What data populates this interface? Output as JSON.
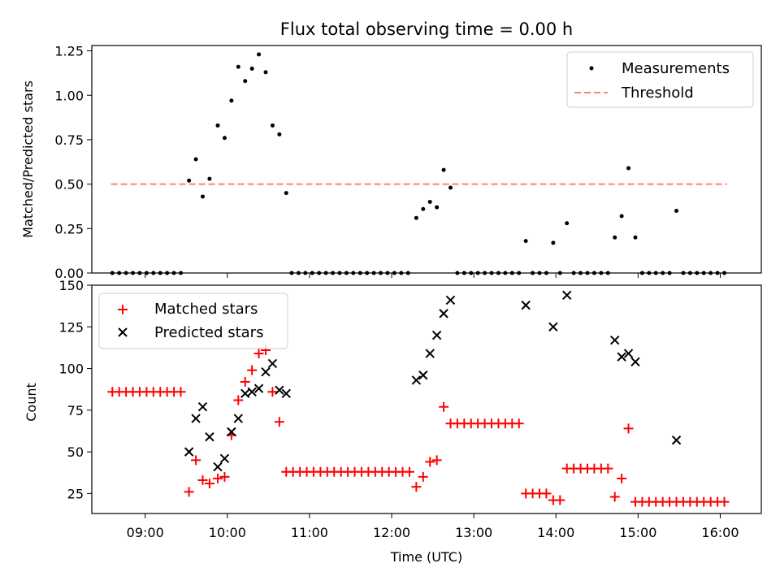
{
  "chart_data": [
    {
      "type": "scatter",
      "title": "Flux total observing time = 0.00 h",
      "ylabel": "Matched/Predicted stars",
      "ylim": [
        0,
        1.28
      ],
      "yticks": [
        "0.00",
        "0.25",
        "0.50",
        "0.75",
        "1.00",
        "1.25"
      ],
      "yticks_values": [
        0,
        0.25,
        0.5,
        0.75,
        1.0,
        1.25
      ],
      "legend_position": "top-right",
      "threshold": {
        "name": "Threshold",
        "value": 0.5,
        "x_range": [
          "08:35",
          "16:05"
        ],
        "color": "#ff7f7f"
      },
      "series": [
        {
          "name": "Measurements",
          "color": "#000000",
          "points": [
            [
              "08:36",
              0
            ],
            [
              "08:41",
              0
            ],
            [
              "08:46",
              0
            ],
            [
              "08:51",
              0
            ],
            [
              "08:56",
              0
            ],
            [
              "09:01",
              0
            ],
            [
              "09:06",
              0
            ],
            [
              "09:11",
              0
            ],
            [
              "09:16",
              0
            ],
            [
              "09:21",
              0
            ],
            [
              "09:26",
              0
            ],
            [
              "09:32",
              0.52
            ],
            [
              "09:37",
              0.64
            ],
            [
              "09:42",
              0.43
            ],
            [
              "09:47",
              0.53
            ],
            [
              "09:53",
              0.83
            ],
            [
              "09:58",
              0.76
            ],
            [
              "10:03",
              0.97
            ],
            [
              "10:08",
              1.16
            ],
            [
              "10:13",
              1.08
            ],
            [
              "10:18",
              1.15
            ],
            [
              "10:23",
              1.23
            ],
            [
              "10:28",
              1.13
            ],
            [
              "10:33",
              0.83
            ],
            [
              "10:38",
              0.78
            ],
            [
              "10:43",
              0.45
            ],
            [
              "10:47",
              0
            ],
            [
              "10:52",
              0
            ],
            [
              "10:57",
              0
            ],
            [
              "11:02",
              0
            ],
            [
              "11:07",
              0
            ],
            [
              "11:12",
              0
            ],
            [
              "11:17",
              0
            ],
            [
              "11:22",
              0
            ],
            [
              "11:27",
              0
            ],
            [
              "11:32",
              0
            ],
            [
              "11:37",
              0
            ],
            [
              "11:42",
              0
            ],
            [
              "11:47",
              0
            ],
            [
              "11:52",
              0
            ],
            [
              "11:57",
              0
            ],
            [
              "12:02",
              0
            ],
            [
              "12:07",
              0
            ],
            [
              "12:12",
              0
            ],
            [
              "12:18",
              0.31
            ],
            [
              "12:23",
              0.36
            ],
            [
              "12:28",
              0.4
            ],
            [
              "12:33",
              0.37
            ],
            [
              "12:38",
              0.58
            ],
            [
              "12:43",
              0.48
            ],
            [
              "12:48",
              0
            ],
            [
              "12:53",
              0
            ],
            [
              "12:58",
              0
            ],
            [
              "13:03",
              0
            ],
            [
              "13:08",
              0
            ],
            [
              "13:13",
              0
            ],
            [
              "13:18",
              0
            ],
            [
              "13:23",
              0
            ],
            [
              "13:28",
              0
            ],
            [
              "13:33",
              0
            ],
            [
              "13:38",
              0.18
            ],
            [
              "13:43",
              0
            ],
            [
              "13:48",
              0
            ],
            [
              "13:53",
              0
            ],
            [
              "13:58",
              0.17
            ],
            [
              "14:03",
              0
            ],
            [
              "14:08",
              0.28
            ],
            [
              "14:13",
              0
            ],
            [
              "14:18",
              0
            ],
            [
              "14:23",
              0
            ],
            [
              "14:28",
              0
            ],
            [
              "14:33",
              0
            ],
            [
              "14:38",
              0
            ],
            [
              "14:43",
              0.2
            ],
            [
              "14:48",
              0.32
            ],
            [
              "14:53",
              0.59
            ],
            [
              "14:58",
              0.2
            ],
            [
              "15:03",
              0
            ],
            [
              "15:08",
              0
            ],
            [
              "15:13",
              0
            ],
            [
              "15:18",
              0
            ],
            [
              "15:23",
              0
            ],
            [
              "15:28",
              0.35
            ],
            [
              "15:33",
              0
            ],
            [
              "15:38",
              0
            ],
            [
              "15:43",
              0
            ],
            [
              "15:48",
              0
            ],
            [
              "15:53",
              0
            ],
            [
              "15:58",
              0
            ],
            [
              "16:03",
              0
            ]
          ]
        }
      ]
    },
    {
      "type": "scatter",
      "xlabel": "Time (UTC)",
      "ylabel": "Count",
      "ylim": [
        13,
        150
      ],
      "yticks": [
        "25",
        "50",
        "75",
        "100",
        "125",
        "150"
      ],
      "yticks_values": [
        25,
        50,
        75,
        100,
        125,
        150
      ],
      "xlim": [
        "08:21",
        "16:30"
      ],
      "xticks": [
        "09:00",
        "10:00",
        "11:00",
        "12:00",
        "13:00",
        "14:00",
        "15:00",
        "16:00"
      ],
      "legend_position": "top-left",
      "series": [
        {
          "name": "Matched stars",
          "marker": "plus",
          "color": "#ff0000",
          "points": [
            [
              "08:36",
              86
            ],
            [
              "08:41",
              86
            ],
            [
              "08:46",
              86
            ],
            [
              "08:51",
              86
            ],
            [
              "08:56",
              86
            ],
            [
              "09:01",
              86
            ],
            [
              "09:06",
              86
            ],
            [
              "09:11",
              86
            ],
            [
              "09:16",
              86
            ],
            [
              "09:21",
              86
            ],
            [
              "09:26",
              86
            ],
            [
              "09:32",
              26
            ],
            [
              "09:37",
              45
            ],
            [
              "09:42",
              33
            ],
            [
              "09:47",
              31
            ],
            [
              "09:53",
              34
            ],
            [
              "09:58",
              35
            ],
            [
              "10:03",
              60
            ],
            [
              "10:08",
              81
            ],
            [
              "10:13",
              92
            ],
            [
              "10:18",
              99
            ],
            [
              "10:23",
              109
            ],
            [
              "10:28",
              111
            ],
            [
              "10:33",
              86
            ],
            [
              "10:38",
              68
            ],
            [
              "10:43",
              38
            ],
            [
              "10:48",
              38
            ],
            [
              "10:53",
              38
            ],
            [
              "10:58",
              38
            ],
            [
              "11:03",
              38
            ],
            [
              "11:08",
              38
            ],
            [
              "11:13",
              38
            ],
            [
              "11:18",
              38
            ],
            [
              "11:23",
              38
            ],
            [
              "11:28",
              38
            ],
            [
              "11:33",
              38
            ],
            [
              "11:38",
              38
            ],
            [
              "11:43",
              38
            ],
            [
              "11:48",
              38
            ],
            [
              "11:53",
              38
            ],
            [
              "11:58",
              38
            ],
            [
              "12:03",
              38
            ],
            [
              "12:08",
              38
            ],
            [
              "12:13",
              38
            ],
            [
              "12:18",
              29
            ],
            [
              "12:23",
              35
            ],
            [
              "12:28",
              44
            ],
            [
              "12:33",
              45
            ],
            [
              "12:38",
              77
            ],
            [
              "12:43",
              67
            ],
            [
              "12:48",
              67
            ],
            [
              "12:53",
              67
            ],
            [
              "12:58",
              67
            ],
            [
              "13:03",
              67
            ],
            [
              "13:08",
              67
            ],
            [
              "13:13",
              67
            ],
            [
              "13:18",
              67
            ],
            [
              "13:23",
              67
            ],
            [
              "13:28",
              67
            ],
            [
              "13:33",
              67
            ],
            [
              "13:38",
              25
            ],
            [
              "13:43",
              25
            ],
            [
              "13:48",
              25
            ],
            [
              "13:53",
              25
            ],
            [
              "13:58",
              21
            ],
            [
              "14:03",
              21
            ],
            [
              "14:08",
              40
            ],
            [
              "14:13",
              40
            ],
            [
              "14:18",
              40
            ],
            [
              "14:23",
              40
            ],
            [
              "14:28",
              40
            ],
            [
              "14:33",
              40
            ],
            [
              "14:38",
              40
            ],
            [
              "14:43",
              23
            ],
            [
              "14:48",
              34
            ],
            [
              "14:53",
              64
            ],
            [
              "14:58",
              20
            ],
            [
              "15:03",
              20
            ],
            [
              "15:08",
              20
            ],
            [
              "15:13",
              20
            ],
            [
              "15:18",
              20
            ],
            [
              "15:23",
              20
            ],
            [
              "15:28",
              20
            ],
            [
              "15:33",
              20
            ],
            [
              "15:38",
              20
            ],
            [
              "15:43",
              20
            ],
            [
              "15:48",
              20
            ],
            [
              "15:53",
              20
            ],
            [
              "15:58",
              20
            ],
            [
              "16:03",
              20
            ]
          ]
        },
        {
          "name": "Predicted stars",
          "marker": "x",
          "color": "#000000",
          "points": [
            [
              "09:32",
              50
            ],
            [
              "09:37",
              70
            ],
            [
              "09:42",
              77
            ],
            [
              "09:47",
              59
            ],
            [
              "09:53",
              41
            ],
            [
              "09:58",
              46
            ],
            [
              "10:03",
              62
            ],
            [
              "10:08",
              70
            ],
            [
              "10:13",
              85
            ],
            [
              "10:18",
              86
            ],
            [
              "10:23",
              88
            ],
            [
              "10:28",
              98
            ],
            [
              "10:33",
              103
            ],
            [
              "10:38",
              87
            ],
            [
              "10:43",
              85
            ],
            [
              "12:18",
              93
            ],
            [
              "12:23",
              96
            ],
            [
              "12:28",
              109
            ],
            [
              "12:33",
              120
            ],
            [
              "12:38",
              133
            ],
            [
              "12:43",
              141
            ],
            [
              "13:38",
              138
            ],
            [
              "13:58",
              125
            ],
            [
              "14:08",
              144
            ],
            [
              "14:43",
              117
            ],
            [
              "14:48",
              107
            ],
            [
              "14:53",
              109
            ],
            [
              "14:58",
              104
            ],
            [
              "15:28",
              57
            ]
          ]
        }
      ]
    }
  ]
}
